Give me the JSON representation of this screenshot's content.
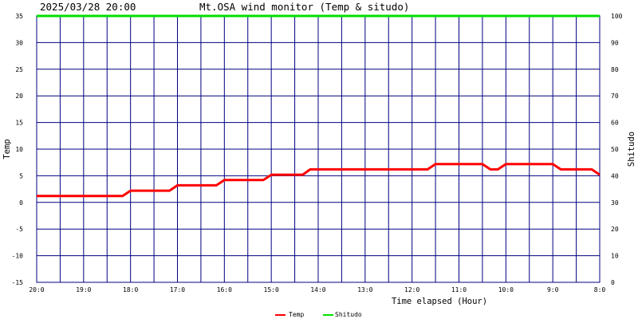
{
  "header": {
    "timestamp": "2025/03/28 20:00",
    "title": "Mt.OSA wind monitor (Temp & situdo)"
  },
  "chart_data": {
    "type": "line",
    "xlabel": "Time elapsed (Hour)",
    "ylabel_left": "Temp",
    "ylabel_right": "Shitudo",
    "ylim_left": [
      -15,
      35
    ],
    "ylim_right": [
      0,
      100
    ],
    "y_ticks_left": [
      35,
      30,
      25,
      20,
      15,
      10,
      5,
      0,
      -5,
      -10,
      -15
    ],
    "y_ticks_right": [
      100,
      90,
      80,
      70,
      60,
      50,
      40,
      30,
      20,
      10,
      0
    ],
    "x_range_hours_elapsed": [
      0,
      12
    ],
    "x_ticks": [
      {
        "h": 0,
        "label": "20:0"
      },
      {
        "h": 1,
        "label": "19:0"
      },
      {
        "h": 2,
        "label": "18:0"
      },
      {
        "h": 3,
        "label": "17:0"
      },
      {
        "h": 4,
        "label": "16:0"
      },
      {
        "h": 5,
        "label": "15:0"
      },
      {
        "h": 6,
        "label": "14:0"
      },
      {
        "h": 7,
        "label": "13:0"
      },
      {
        "h": 8,
        "label": "12:0"
      },
      {
        "h": 9,
        "label": "11:0"
      },
      {
        "h": 10,
        "label": "10:0"
      },
      {
        "h": 11,
        "label": "9:0"
      },
      {
        "h": 12,
        "label": "8:0"
      }
    ],
    "grid": true,
    "legend_position": "bottom-center",
    "series": [
      {
        "name": "Temp",
        "axis": "left",
        "color": "#ff0000",
        "points": [
          [
            0,
            1.2
          ],
          [
            1.83,
            1.2
          ],
          [
            2,
            2.2
          ],
          [
            2.83,
            2.2
          ],
          [
            3,
            3.2
          ],
          [
            3.83,
            3.2
          ],
          [
            4,
            4.2
          ],
          [
            4.83,
            4.2
          ],
          [
            5,
            5.2
          ],
          [
            5.67,
            5.2
          ],
          [
            5.83,
            6.2
          ],
          [
            8.33,
            6.2
          ],
          [
            8.5,
            7.2
          ],
          [
            9.5,
            7.2
          ],
          [
            9.67,
            6.2
          ],
          [
            9.83,
            6.2
          ],
          [
            10,
            7.2
          ],
          [
            11,
            7.2
          ],
          [
            11.17,
            6.2
          ],
          [
            11.83,
            6.2
          ],
          [
            12,
            5.2
          ]
        ]
      },
      {
        "name": "Shitudo",
        "axis": "right",
        "color": "#00e000",
        "points": [
          [
            0,
            100
          ],
          [
            12,
            100
          ]
        ]
      }
    ]
  }
}
